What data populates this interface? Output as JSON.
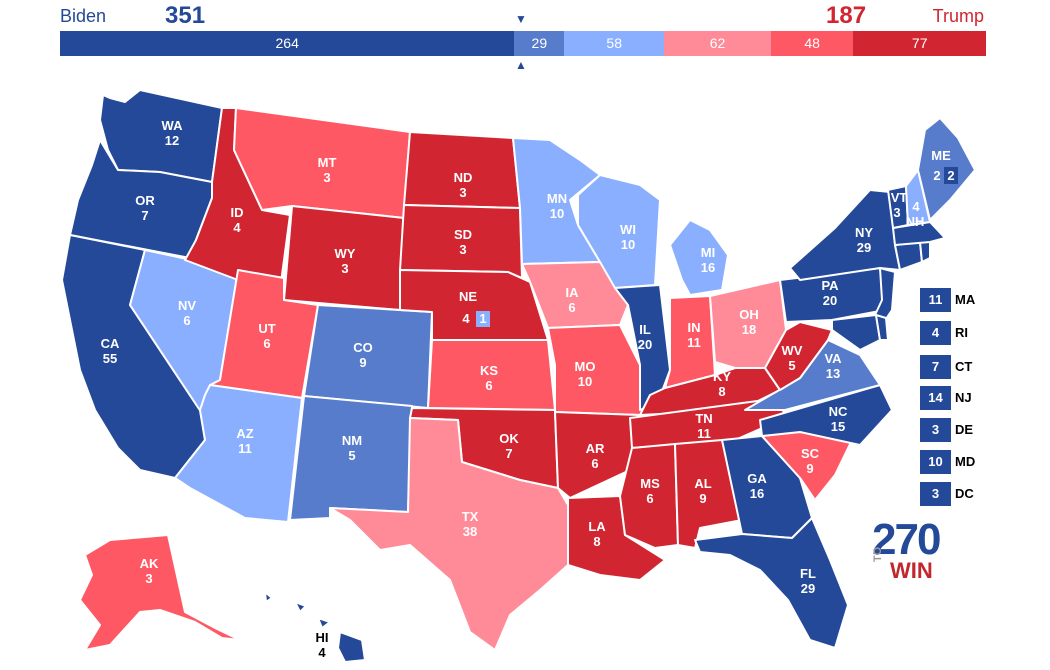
{
  "header": {
    "biden": {
      "name": "Biden",
      "total": "351"
    },
    "trump": {
      "name": "Trump",
      "total": "187"
    }
  },
  "tally_bar": {
    "segments": [
      {
        "value": "264",
        "votes": 264,
        "color": "#244999",
        "category": "safe-dem"
      },
      {
        "value": "29",
        "votes": 29,
        "color": "#577ccc",
        "category": "likely-dem"
      },
      {
        "value": "58",
        "votes": 58,
        "color": "#8aafff",
        "category": "lean-dem"
      },
      {
        "value": "62",
        "votes": 62,
        "color": "#ff8b98",
        "category": "lean-rep"
      },
      {
        "value": "48",
        "votes": 48,
        "color": "#ff5865",
        "category": "likely-rep"
      },
      {
        "value": "77",
        "votes": 77,
        "color": "#d22532",
        "category": "safe-rep"
      }
    ],
    "marker_up": "▲",
    "marker_down": "▼"
  },
  "colors": {
    "safe-dem": "#244999",
    "likely-dem": "#577ccc",
    "lean-dem": "#8aafff",
    "lean-rep": "#ff8b98",
    "likely-rep": "#ff5865",
    "safe-rep": "#d22532"
  },
  "states": {
    "WA": {
      "abbr": "WA",
      "ev": "12"
    },
    "OR": {
      "abbr": "OR",
      "ev": "7"
    },
    "CA": {
      "abbr": "CA",
      "ev": "55"
    },
    "NV": {
      "abbr": "NV",
      "ev": "6"
    },
    "ID": {
      "abbr": "ID",
      "ev": "4"
    },
    "MT": {
      "abbr": "MT",
      "ev": "3"
    },
    "WY": {
      "abbr": "WY",
      "ev": "3"
    },
    "UT": {
      "abbr": "UT",
      "ev": "6"
    },
    "AZ": {
      "abbr": "AZ",
      "ev": "11"
    },
    "CO": {
      "abbr": "CO",
      "ev": "9"
    },
    "NM": {
      "abbr": "NM",
      "ev": "5"
    },
    "ND": {
      "abbr": "ND",
      "ev": "3"
    },
    "SD": {
      "abbr": "SD",
      "ev": "3"
    },
    "NE": {
      "abbr": "NE",
      "ev": "4",
      "district_ev": "1"
    },
    "KS": {
      "abbr": "KS",
      "ev": "6"
    },
    "OK": {
      "abbr": "OK",
      "ev": "7"
    },
    "TX": {
      "abbr": "TX",
      "ev": "38"
    },
    "MN": {
      "abbr": "MN",
      "ev": "10"
    },
    "IA": {
      "abbr": "IA",
      "ev": "6"
    },
    "MO": {
      "abbr": "MO",
      "ev": "10"
    },
    "AR": {
      "abbr": "AR",
      "ev": "6"
    },
    "LA": {
      "abbr": "LA",
      "ev": "8"
    },
    "WI": {
      "abbr": "WI",
      "ev": "10"
    },
    "IL": {
      "abbr": "IL",
      "ev": "20"
    },
    "MI": {
      "abbr": "MI",
      "ev": "16"
    },
    "IN": {
      "abbr": "IN",
      "ev": "11"
    },
    "OH": {
      "abbr": "OH",
      "ev": "18"
    },
    "KY": {
      "abbr": "KY",
      "ev": "8"
    },
    "TN": {
      "abbr": "TN",
      "ev": "11"
    },
    "MS": {
      "abbr": "MS",
      "ev": "6"
    },
    "AL": {
      "abbr": "AL",
      "ev": "9"
    },
    "GA": {
      "abbr": "GA",
      "ev": "16"
    },
    "FL": {
      "abbr": "FL",
      "ev": "29"
    },
    "SC": {
      "abbr": "SC",
      "ev": "9"
    },
    "NC": {
      "abbr": "NC",
      "ev": "15"
    },
    "VA": {
      "abbr": "VA",
      "ev": "13"
    },
    "WV": {
      "abbr": "WV",
      "ev": "5"
    },
    "PA": {
      "abbr": "PA",
      "ev": "20"
    },
    "NY": {
      "abbr": "NY",
      "ev": "29"
    },
    "VT": {
      "abbr": "VT",
      "ev": "3"
    },
    "NH": {
      "abbr": "NH",
      "ev": "4"
    },
    "ME": {
      "abbr": "ME",
      "ev": "2",
      "district_ev": "2"
    },
    "AK": {
      "abbr": "AK",
      "ev": "3"
    },
    "HI": {
      "abbr": "HI",
      "ev": "4"
    }
  },
  "northeast_list": [
    {
      "abbr": "MA",
      "ev": "11"
    },
    {
      "abbr": "RI",
      "ev": "4"
    },
    {
      "abbr": "CT",
      "ev": "7"
    },
    {
      "abbr": "NJ",
      "ev": "14"
    },
    {
      "abbr": "DE",
      "ev": "3"
    },
    {
      "abbr": "MD",
      "ev": "10"
    },
    {
      "abbr": "DC",
      "ev": "3"
    }
  ],
  "logo": {
    "number": "270",
    "to": "TO",
    "win": "WIN"
  }
}
